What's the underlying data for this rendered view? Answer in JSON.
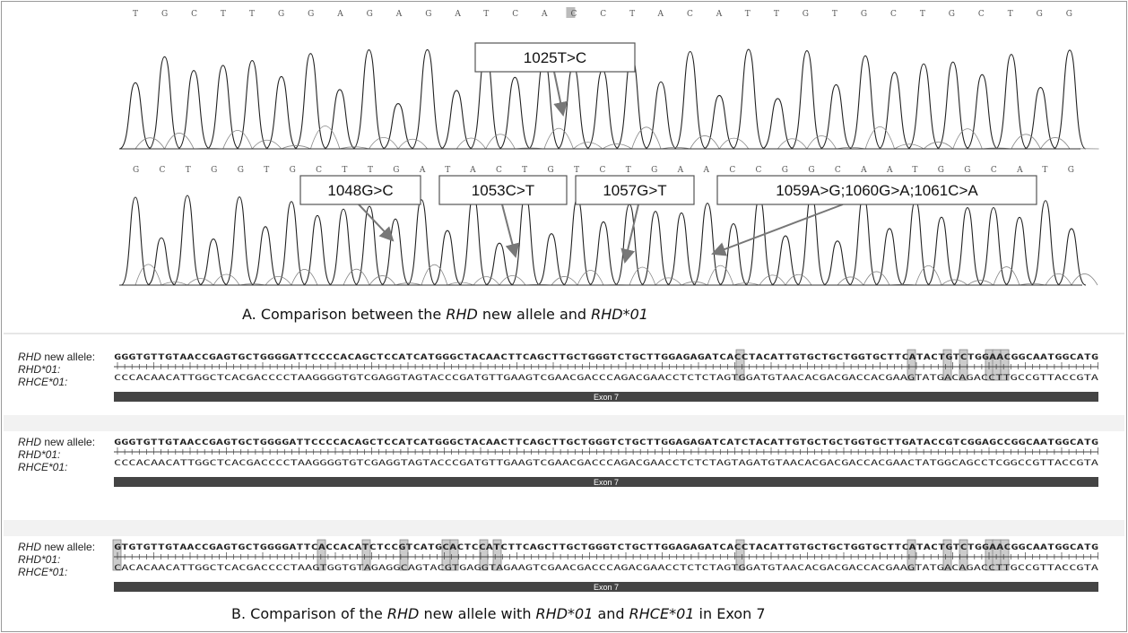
{
  "panel_a": {
    "trace1": {
      "bases": "TGCTTGGAGAGATCACCTACATTGTGCTGCTGG"
    },
    "trace2": {
      "bases": "GCTGGTGCTTGATACTGTCTGAACCGGCAATGGCATG"
    },
    "annotations": [
      "1025T>C",
      "1048G>C",
      "1053C>T",
      "1057G>T",
      "1059A>G;1060G>A;1061C>A"
    ],
    "caption": [
      {
        "text": "A. Comparison between the ",
        "italic": false
      },
      {
        "text": "RHD",
        "italic": true
      },
      {
        "text": " new allele and ",
        "italic": false
      },
      {
        "text": "RHD*01",
        "italic": true
      }
    ]
  },
  "panel_b": {
    "labels": [
      [
        {
          "text": "RHD",
          "italic": true
        },
        {
          "text": " new allele:",
          "italic": false
        }
      ],
      [
        {
          "text": "RHD*01:",
          "italic": true
        }
      ],
      [
        {
          "text": "RHCE*01:",
          "italic": true
        }
      ]
    ],
    "blocks": [
      {
        "top": "GGGTGTTGTAACCGAGTGCTGGGGATTCCCCACAGCTCCATCATGGGCTACAACTTCAGCTTGCTGGGTCTGCTTGGAGAGATCACCTACATTGTGCTGCTGGTGCTTCATACTGTCTGGAACGGCAATGGCATG",
        "bottom": "CCCACAACATTGGCTCACGACCCCTAAGGGGTGTCGAGGTAGTACCCGATGTTGAAGTCGAACGACCCAGACGAACCTCTCTAGTGGATGTAACACGACGACCACGAAGTATGACAGACCTTGCCGTTACCGTA",
        "exon": "Exon 7"
      },
      {
        "top": "GGGTGTTGTAACCGAGTGCTGGGGATTCCCCACAGCTCCATCATGGGCTACAACTTCAGCTTGCTGGGTCTGCTTGGAGAGATCATCTACATTGTGCTGCTGGTGCTTGATACCGTCGGAGCCGGCAATGGCATG",
        "bottom": "CCCACAACATTGGCTCACGACCCCTAAGGGGTGTCGAGGTAGTACCCGATGTTGAAGTCGAACGACCCAGACGAACCTCTCTAGTAGATGTAACACGACGACCACGAACTATGGCAGCCTCGGCCGTTACCGTA",
        "exon": "Exon 7"
      },
      {
        "top": "GTGTGTTGTAACCGAGTGCTGGGGATTCACCACATCTCCGTCATGCACTCCATCTTCAGCTTGCTGGGTCTGCTTGGAGAGATCACCTACATTGTGCTGCTGGTGCTTCATACTGTCTGGAACGGCAATGGCATG",
        "bottom": "CACACAACATTGGCTCACGACCCCTAAGTGGTGTAGAGGCAGTACGTGAGGTAGAAGTCGAACGACCCAGACGAACCTCTCTAGTGGATGTAACACGACGACCACGAAGTATGACAGACCTTGCCGTTACCGTA",
        "exon": "Exon 7"
      }
    ],
    "caption": [
      {
        "text": "B. Comparison of the ",
        "italic": false
      },
      {
        "text": "RHD",
        "italic": true
      },
      {
        "text": " new allele with ",
        "italic": false
      },
      {
        "text": "RHD*01",
        "italic": true
      },
      {
        "text": " and ",
        "italic": false
      },
      {
        "text": "RHCE*01",
        "italic": true
      },
      {
        "text": "  in Exon 7",
        "italic": false
      }
    ]
  }
}
